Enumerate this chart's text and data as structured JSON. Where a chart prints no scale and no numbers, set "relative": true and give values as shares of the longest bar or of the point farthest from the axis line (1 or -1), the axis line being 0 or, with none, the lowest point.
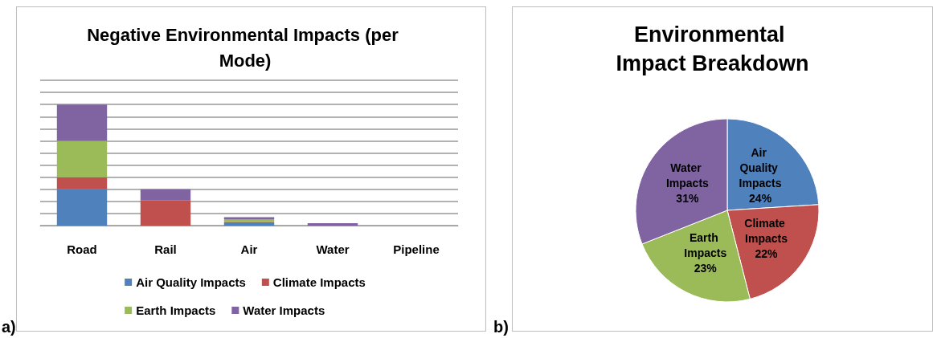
{
  "chart_data": [
    {
      "type": "bar",
      "title": "Negative Environmental Impacts (per Mode)",
      "categories": [
        "Road",
        "Rail",
        "Air",
        "Water",
        "Pipeline"
      ],
      "relative": true,
      "stacked": true,
      "grid": "y",
      "legend": "bottom",
      "annotations": [
        "a)"
      ],
      "series": [
        {
          "name": "Air Quality Impacts",
          "color": "#4f81bd",
          "values": [
            0.3,
            0,
            0.02,
            0,
            0
          ]
        },
        {
          "name": "Climate Impacts",
          "color": "#c0504d",
          "values": [
            0.1,
            0.21,
            0.01,
            0,
            0
          ]
        },
        {
          "name": "Earth Impacts",
          "color": "#9bbb59",
          "values": [
            0.3,
            0,
            0.02,
            0,
            0
          ]
        },
        {
          "name": "Water Impacts",
          "color": "#8064a2",
          "values": [
            0.3,
            0.09,
            0.02,
            0.02,
            null
          ]
        }
      ]
    },
    {
      "type": "pie",
      "title": "Environmental Impact Breakdown",
      "categories": [
        "Air Quality Impacts",
        "Climate Impacts",
        "Earth Impacts",
        "Water Impacts"
      ],
      "values": [
        24,
        22,
        23,
        31
      ],
      "value_labels": [
        "24%",
        "22%",
        "23%",
        "31%"
      ],
      "colors": [
        "#4f81bd",
        "#c0504d",
        "#9bbb59",
        "#8064a2"
      ],
      "annotations": [
        "b)"
      ]
    }
  ]
}
